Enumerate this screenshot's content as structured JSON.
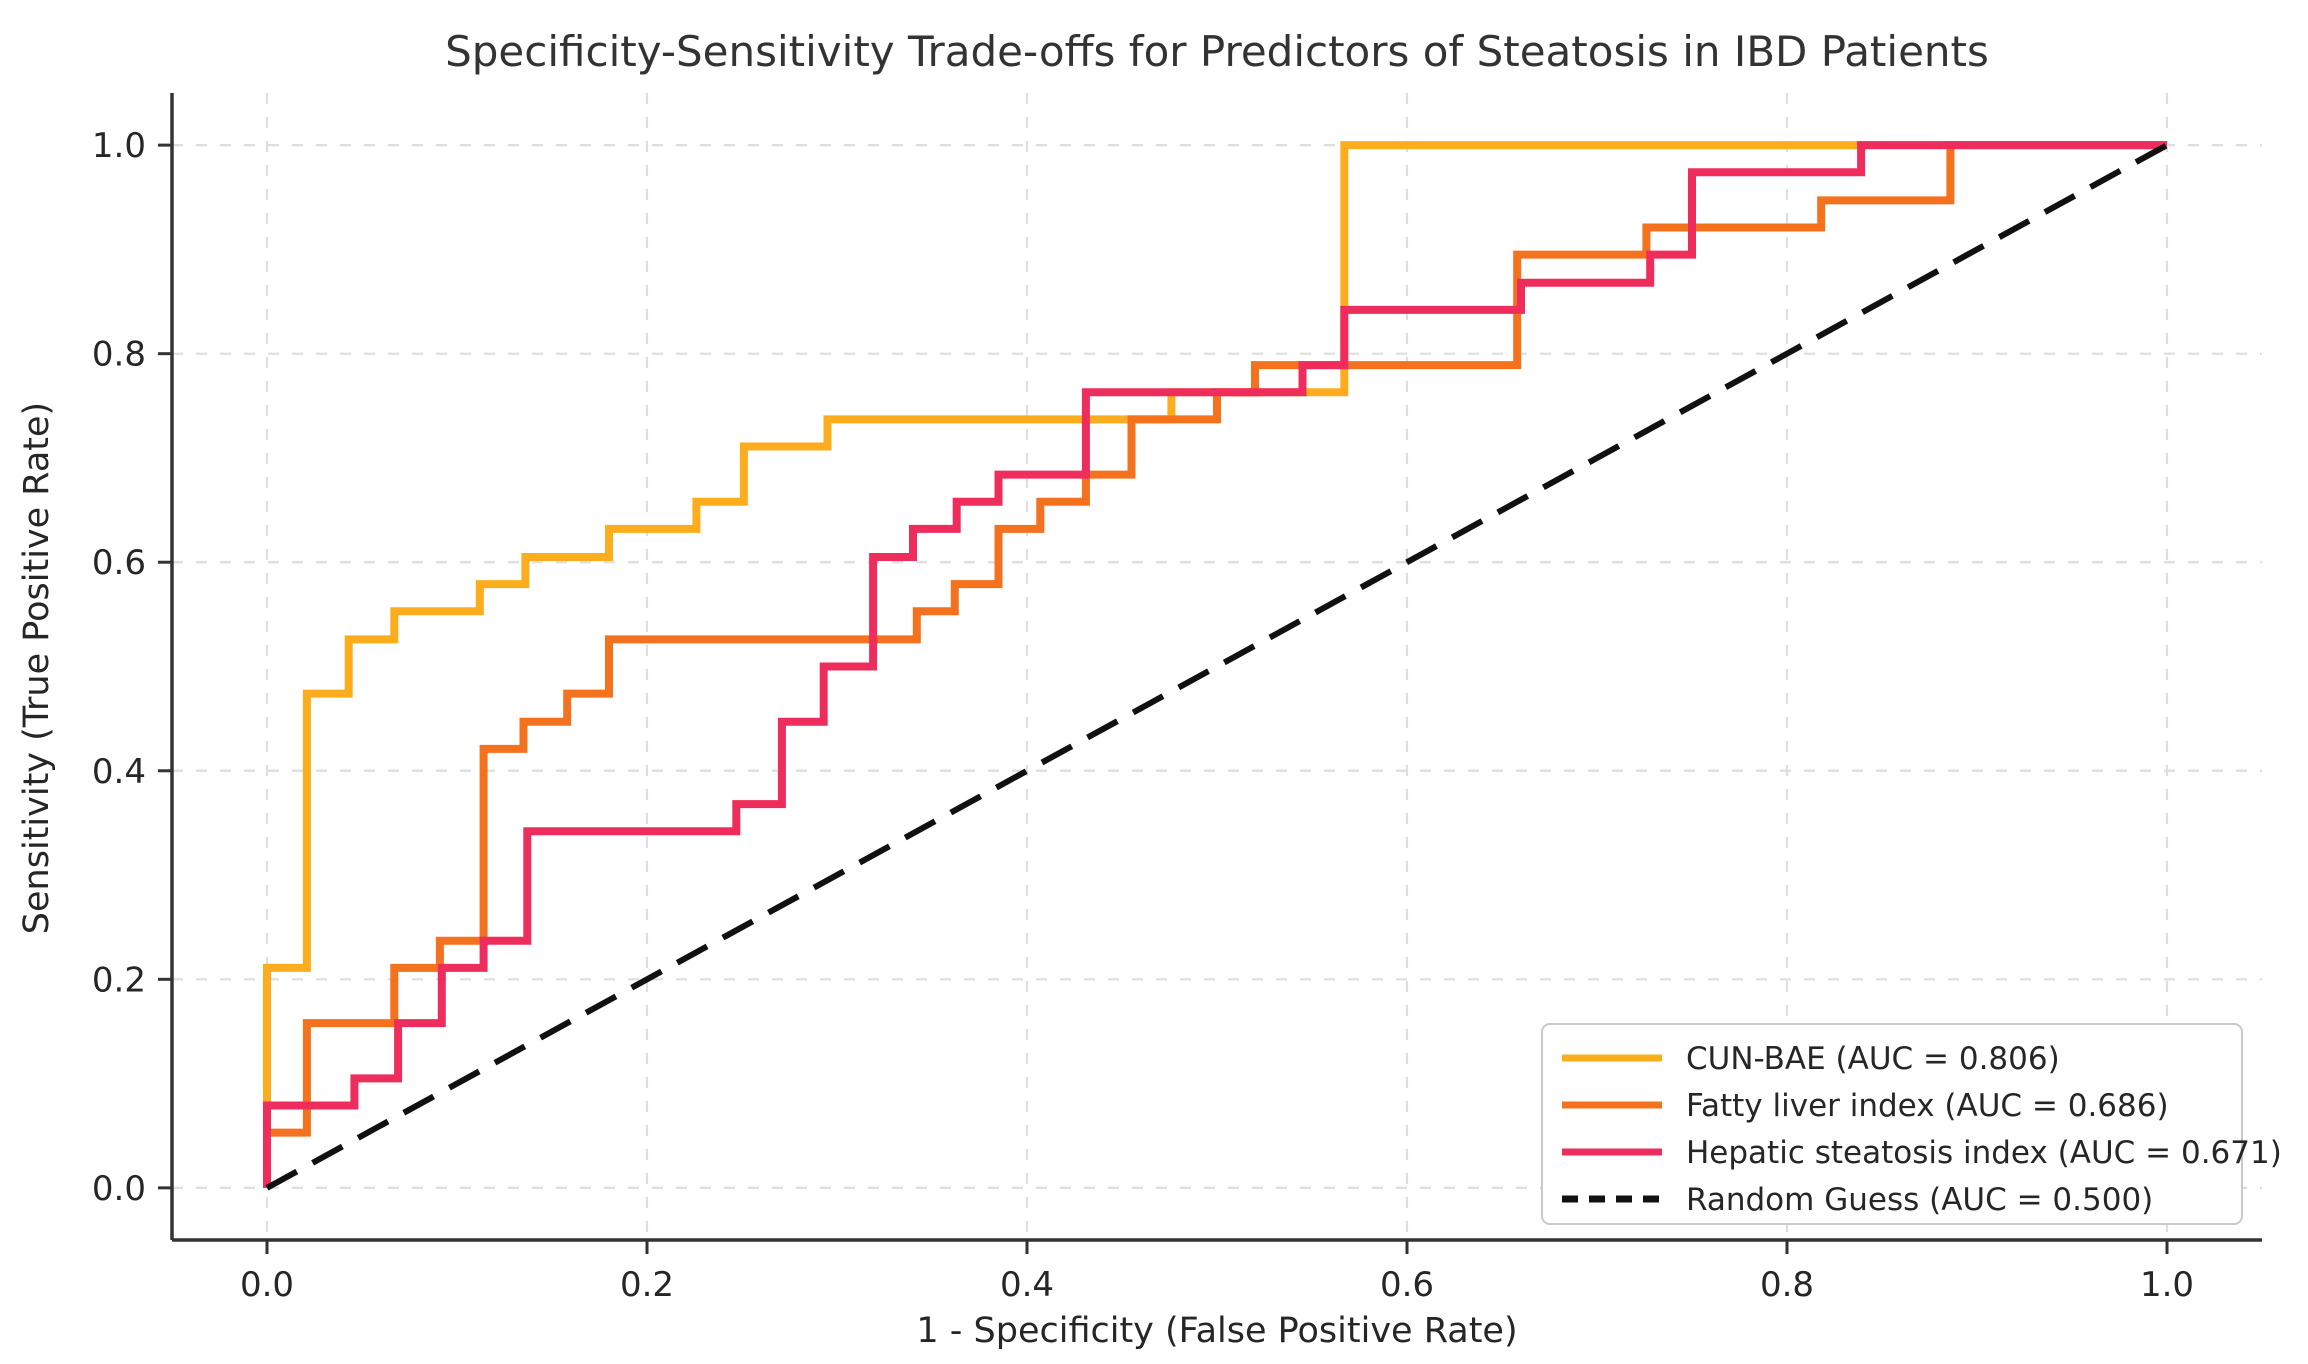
{
  "page": {
    "background": "#ffffff"
  },
  "chart_data": {
    "type": "line",
    "subtype": "roc-step-curves",
    "title": "Specificity-Sensitivity Trade-offs for Predictors of Steatosis in IBD Patients",
    "xlabel": "1 - Specificity (False Positive Rate)",
    "ylabel": "Sensitivity (True Positive Rate)",
    "xlim": [
      -0.05,
      1.05
    ],
    "ylim": [
      -0.05,
      1.05
    ],
    "xticks": [
      0.0,
      0.2,
      0.4,
      0.6,
      0.8,
      1.0
    ],
    "yticks": [
      0.0,
      0.2,
      0.4,
      0.6,
      0.8,
      1.0
    ],
    "xtick_labels": [
      "0.0",
      "0.2",
      "0.4",
      "0.6",
      "0.8",
      "1.0"
    ],
    "ytick_labels": [
      "0.0",
      "0.2",
      "0.4",
      "0.6",
      "0.8",
      "1.0"
    ],
    "grid": true,
    "grid_color": "#dedede",
    "spine_color": "#333333",
    "text_color": "#262626",
    "title_color": "#333333",
    "legend_position": "lower right",
    "series": [
      {
        "name": "CUN-BAE",
        "auc": 0.806,
        "color": "#FBAD1D",
        "style": "solid",
        "points": [
          [
            0,
            0
          ],
          [
            0,
            0.211
          ],
          [
            0.021,
            0.211
          ],
          [
            0.021,
            0.474
          ],
          [
            0.043,
            0.474
          ],
          [
            0.043,
            0.526
          ],
          [
            0.067,
            0.526
          ],
          [
            0.067,
            0.553
          ],
          [
            0.112,
            0.553
          ],
          [
            0.112,
            0.579
          ],
          [
            0.136,
            0.579
          ],
          [
            0.136,
            0.605
          ],
          [
            0.18,
            0.605
          ],
          [
            0.18,
            0.632
          ],
          [
            0.226,
            0.632
          ],
          [
            0.226,
            0.658
          ],
          [
            0.251,
            0.658
          ],
          [
            0.251,
            0.711
          ],
          [
            0.295,
            0.711
          ],
          [
            0.295,
            0.737
          ],
          [
            0.476,
            0.737
          ],
          [
            0.476,
            0.763
          ],
          [
            0.567,
            0.763
          ],
          [
            0.567,
            1.0
          ],
          [
            1.0,
            1.0
          ]
        ]
      },
      {
        "name": "Fatty liver index",
        "auc": 0.686,
        "color": "#F4711D",
        "style": "solid",
        "points": [
          [
            0,
            0
          ],
          [
            0,
            0.053
          ],
          [
            0.021,
            0.053
          ],
          [
            0.021,
            0.158
          ],
          [
            0.067,
            0.158
          ],
          [
            0.067,
            0.211
          ],
          [
            0.091,
            0.211
          ],
          [
            0.091,
            0.237
          ],
          [
            0.114,
            0.237
          ],
          [
            0.114,
            0.421
          ],
          [
            0.135,
            0.421
          ],
          [
            0.135,
            0.447
          ],
          [
            0.158,
            0.447
          ],
          [
            0.158,
            0.474
          ],
          [
            0.18,
            0.474
          ],
          [
            0.18,
            0.526
          ],
          [
            0.342,
            0.526
          ],
          [
            0.342,
            0.553
          ],
          [
            0.362,
            0.553
          ],
          [
            0.362,
            0.579
          ],
          [
            0.385,
            0.579
          ],
          [
            0.385,
            0.632
          ],
          [
            0.407,
            0.632
          ],
          [
            0.407,
            0.658
          ],
          [
            0.431,
            0.658
          ],
          [
            0.431,
            0.684
          ],
          [
            0.455,
            0.684
          ],
          [
            0.455,
            0.737
          ],
          [
            0.5,
            0.737
          ],
          [
            0.5,
            0.763
          ],
          [
            0.52,
            0.763
          ],
          [
            0.52,
            0.789
          ],
          [
            0.658,
            0.789
          ],
          [
            0.658,
            0.895
          ],
          [
            0.726,
            0.895
          ],
          [
            0.726,
            0.921
          ],
          [
            0.818,
            0.921
          ],
          [
            0.818,
            0.947
          ],
          [
            0.886,
            0.947
          ],
          [
            0.886,
            1.0
          ],
          [
            1.0,
            1.0
          ]
        ]
      },
      {
        "name": "Hepatic steatosis index",
        "auc": 0.671,
        "color": "#EF2D5C",
        "style": "solid",
        "points": [
          [
            0,
            0
          ],
          [
            0,
            0.079
          ],
          [
            0.046,
            0.079
          ],
          [
            0.046,
            0.105
          ],
          [
            0.069,
            0.105
          ],
          [
            0.069,
            0.158
          ],
          [
            0.092,
            0.158
          ],
          [
            0.092,
            0.211
          ],
          [
            0.114,
            0.211
          ],
          [
            0.114,
            0.237
          ],
          [
            0.137,
            0.237
          ],
          [
            0.137,
            0.342
          ],
          [
            0.247,
            0.342
          ],
          [
            0.247,
            0.368
          ],
          [
            0.271,
            0.368
          ],
          [
            0.271,
            0.447
          ],
          [
            0.293,
            0.447
          ],
          [
            0.293,
            0.5
          ],
          [
            0.319,
            0.5
          ],
          [
            0.319,
            0.605
          ],
          [
            0.34,
            0.605
          ],
          [
            0.34,
            0.632
          ],
          [
            0.363,
            0.632
          ],
          [
            0.363,
            0.658
          ],
          [
            0.385,
            0.658
          ],
          [
            0.385,
            0.684
          ],
          [
            0.431,
            0.684
          ],
          [
            0.431,
            0.763
          ],
          [
            0.545,
            0.763
          ],
          [
            0.545,
            0.789
          ],
          [
            0.567,
            0.789
          ],
          [
            0.567,
            0.842
          ],
          [
            0.66,
            0.842
          ],
          [
            0.66,
            0.868
          ],
          [
            0.728,
            0.868
          ],
          [
            0.728,
            0.895
          ],
          [
            0.75,
            0.895
          ],
          [
            0.75,
            0.974
          ],
          [
            0.839,
            0.974
          ],
          [
            0.839,
            1.0
          ],
          [
            1.0,
            1.0
          ]
        ]
      },
      {
        "name": "Random Guess",
        "auc": 0.5,
        "color": "#111111",
        "style": "dashed",
        "points": [
          [
            0,
            0
          ],
          [
            1,
            1
          ]
        ]
      }
    ],
    "legend": {
      "items": [
        {
          "label": "CUN-BAE (AUC = 0.806)",
          "color": "#FBAD1D",
          "dashed": false
        },
        {
          "label": "Fatty liver index (AUC = 0.686)",
          "color": "#F4711D",
          "dashed": false
        },
        {
          "label": "Hepatic steatosis index (AUC = 0.671)",
          "color": "#EF2D5C",
          "dashed": false
        },
        {
          "label": "Random Guess (AUC = 0.500)",
          "color": "#111111",
          "dashed": true
        }
      ]
    }
  }
}
